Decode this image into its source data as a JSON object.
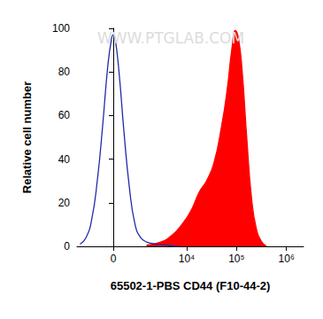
{
  "chart_data": {
    "type": "line",
    "xlabel": "65502-1-PBS CD44 (F10-44-2)",
    "ylabel": "Relative cell number",
    "annotations": [
      "WWW.PTGLAB.COM"
    ],
    "log": "x",
    "xlim": [
      -1750,
      2200000
    ],
    "xticks": [
      0,
      {
        "value": 10000,
        "label": "10⁴"
      },
      {
        "value": 100000,
        "label": "10⁵"
      },
      {
        "value": 1000000,
        "label": "10⁶"
      }
    ],
    "ylim": [
      0,
      100
    ],
    "yticks": [
      0,
      20,
      40,
      60,
      80,
      100
    ],
    "grid": false,
    "series": [
      {
        "type": "line",
        "color": "#1f2aa8",
        "x": [
          -1500,
          -1100,
          -800,
          -550,
          -350,
          -180,
          -60,
          0,
          60,
          180,
          350,
          550,
          800,
          1100,
          1500,
          2500,
          4000,
          7000
        ],
        "values": [
          1,
          4,
          12,
          30,
          55,
          82,
          95,
          97,
          95,
          80,
          52,
          27,
          10,
          4,
          2,
          1,
          0.5,
          0
        ]
      },
      {
        "type": "area",
        "color": "#ff0000",
        "x": [
          1500,
          3000,
          5000,
          8000,
          12000,
          18000,
          25000,
          35000,
          50000,
          65000,
          80000,
          95000,
          110000,
          130000,
          160000,
          200000,
          250000,
          320000,
          400000
        ],
        "values": [
          0.5,
          2,
          5,
          10,
          16,
          25,
          30,
          38,
          55,
          72,
          90,
          99,
          95,
          80,
          50,
          22,
          8,
          2,
          0
        ]
      }
    ]
  }
}
